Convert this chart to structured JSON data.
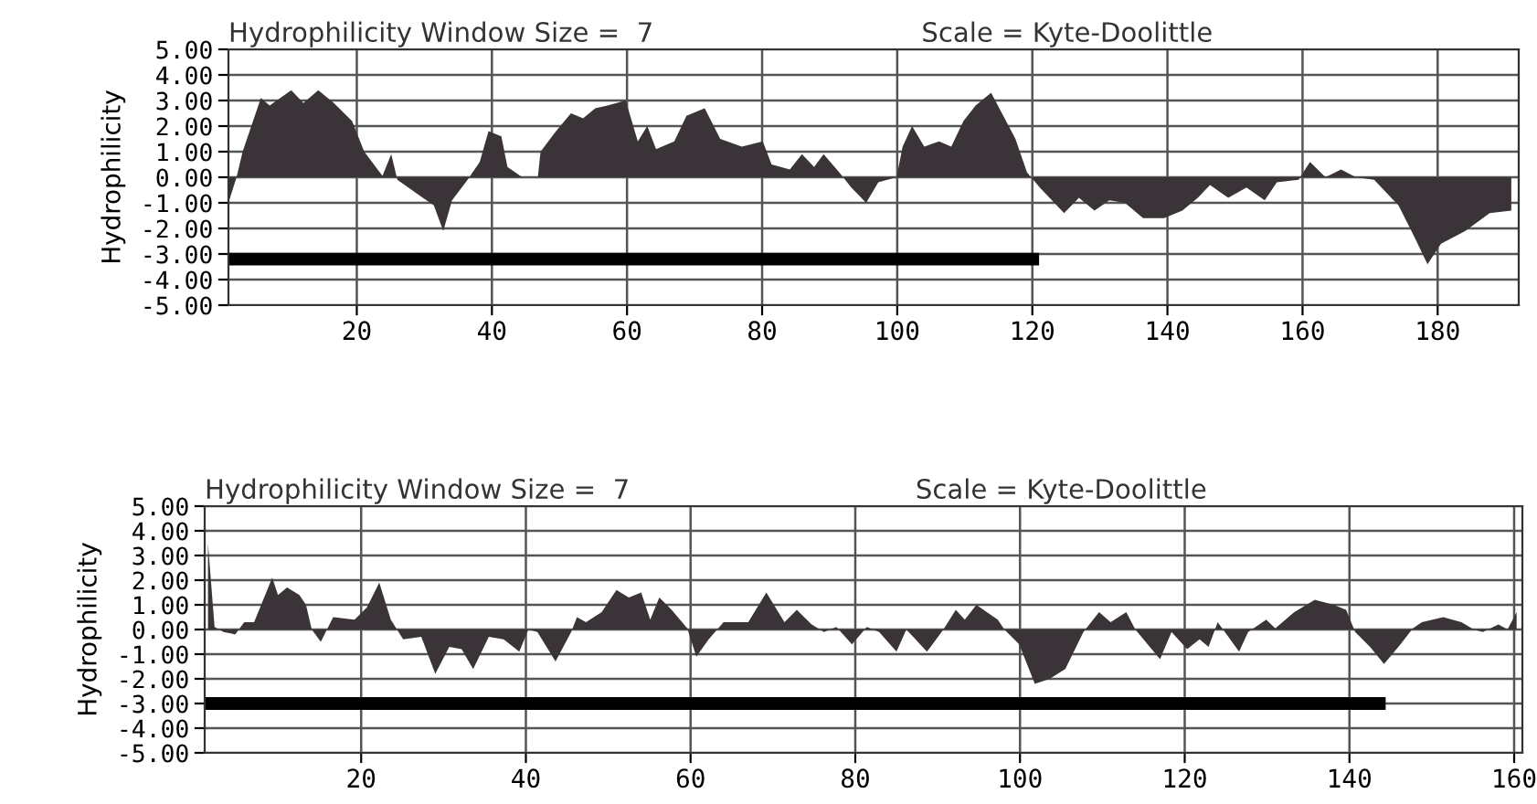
{
  "chart_data": [
    {
      "type": "area",
      "title": "Hydrophilicity Window Size =  7",
      "subtitle": "Scale = Kyte-Doolittle",
      "ylabel": "Hydrophilicity",
      "xlim": [
        1,
        192
      ],
      "ylim": [
        -5,
        5
      ],
      "xticks": [
        20,
        40,
        60,
        80,
        100,
        120,
        140,
        160,
        180
      ],
      "yticks": [
        {
          "value": 5,
          "label": "5.00"
        },
        {
          "value": 4,
          "label": "4.00"
        },
        {
          "value": 3,
          "label": "3.00"
        },
        {
          "value": 2,
          "label": "2.00"
        },
        {
          "value": 1,
          "label": "1.00"
        },
        {
          "value": 0,
          "label": "0.00"
        },
        {
          "value": -1,
          "label": "-1.00"
        },
        {
          "value": -2,
          "label": "-2.00"
        },
        {
          "value": -3,
          "label": "-3.00"
        },
        {
          "value": -4,
          "label": "-4.00"
        },
        {
          "value": -5,
          "label": "-5.00"
        }
      ],
      "grid": true,
      "legend": false,
      "series": [
        {
          "color": "#3a3338",
          "x": [
            1,
            2.2,
            3.1,
            5.8,
            7.1,
            10.3,
            12.1,
            14.3,
            16.6,
            19.3,
            21.1,
            23.8,
            25.1,
            26,
            29.2,
            31.4,
            32.8,
            34.1,
            36.4,
            38.2,
            39.5,
            41.4,
            42.3,
            44.5,
            46.8,
            47.2,
            49.5,
            51.7,
            53.5,
            55.3,
            57.1,
            59.8,
            61.6,
            63,
            64.3,
            67,
            68.8,
            71.5,
            73.8,
            77,
            80.1,
            81.4,
            84.1,
            85.9,
            87.7,
            89.1,
            91.4,
            93.2,
            95.4,
            97.2,
            99.9,
            100.8,
            102.2,
            104,
            106.2,
            108,
            109.8,
            111.6,
            113.9,
            115.7,
            117.5,
            119.2,
            121.1,
            124.7,
            126.9,
            129.2,
            131.4,
            133.7,
            136.4,
            139.5,
            142.2,
            144.5,
            146.3,
            149,
            151.7,
            154.4,
            156.2,
            159.4,
            161.1,
            163.4,
            165.7,
            167.9,
            170.6,
            174.2,
            176.5,
            178.5,
            180.5,
            184.1,
            187.7,
            190.9
          ],
          "values": [
            -1.0,
            0,
            1.0,
            3.1,
            2.8,
            3.4,
            2.9,
            3.4,
            2.9,
            2.2,
            1.0,
            0.05,
            0.9,
            -0.1,
            -0.7,
            -1.1,
            -2.1,
            -0.9,
            -0.1,
            0.6,
            1.8,
            1.6,
            0.4,
            0,
            0,
            1.0,
            1.8,
            2.5,
            2.3,
            2.7,
            2.8,
            3.0,
            1.4,
            2.0,
            1.1,
            1.4,
            2.4,
            2.7,
            1.5,
            1.2,
            1.4,
            0.5,
            0.3,
            0.9,
            0.4,
            0.9,
            0.2,
            -0.4,
            -1.0,
            -0.2,
            0,
            1.2,
            2.0,
            1.2,
            1.4,
            1.2,
            2.2,
            2.8,
            3.3,
            2.4,
            1.5,
            0.2,
            -0.4,
            -1.4,
            -0.8,
            -1.3,
            -0.9,
            -1.0,
            -1.6,
            -1.6,
            -1.3,
            -0.8,
            -0.3,
            -0.8,
            -0.4,
            -0.9,
            -0.2,
            -0.1,
            0.6,
            0,
            0.3,
            0,
            -0.1,
            -1.1,
            -2.3,
            -3.4,
            -2.6,
            -2.1,
            -1.4,
            -1.3
          ]
        },
        {
          "type": "line",
          "color": "#000000",
          "x": [
            1,
            121
          ],
          "values": [
            -3.2,
            -3.2
          ]
        }
      ]
    },
    {
      "type": "area",
      "title": "Hydrophilicity Window Size =  7",
      "subtitle": "Scale = Kyte-Doolittle",
      "ylabel": "Hydrophilicity",
      "xlim": [
        1,
        161
      ],
      "ylim": [
        -5,
        5
      ],
      "xticks": [
        20,
        40,
        60,
        80,
        100,
        120,
        140,
        160
      ],
      "yticks": [
        {
          "value": 5,
          "label": "5.00"
        },
        {
          "value": 4,
          "label": "4.00"
        },
        {
          "value": 3,
          "label": "3.00"
        },
        {
          "value": 2,
          "label": "2.00"
        },
        {
          "value": 1,
          "label": "1.00"
        },
        {
          "value": 0,
          "label": "0.00"
        },
        {
          "value": -1,
          "label": "-1.00"
        },
        {
          "value": -2,
          "label": "-2.00"
        },
        {
          "value": -3,
          "label": "-3.00"
        },
        {
          "value": -4,
          "label": "-4.00"
        },
        {
          "value": -5,
          "label": "-5.00"
        }
      ],
      "grid": true,
      "legend": false,
      "series": [
        {
          "color": "#3a3338",
          "x": [
            1.4,
            2.2,
            3.3,
            4.7,
            5.8,
            7,
            9.2,
            9.9,
            11,
            12.5,
            13.3,
            14,
            15.1,
            16.6,
            19.2,
            20.7,
            22.2,
            23.6,
            25.1,
            27.3,
            29,
            30.7,
            32.2,
            33.6,
            35.5,
            37.3,
            39.2,
            40.3,
            41.4,
            43.6,
            45.5,
            46.2,
            47.3,
            49.2,
            51,
            52.5,
            54,
            55.1,
            56.2,
            57.7,
            59.6,
            60.7,
            62.2,
            64,
            67,
            69.2,
            71.4,
            72.9,
            74.7,
            76.2,
            77.7,
            79.6,
            81.4,
            82.9,
            85,
            86.2,
            88.7,
            90.7,
            92.2,
            93.3,
            94.7,
            97.3,
            98.1,
            99.9,
            101.8,
            103.6,
            105.5,
            107.7,
            109.6,
            111,
            112.9,
            114,
            115.5,
            117,
            118.4,
            120.3,
            121.8,
            122.9,
            124,
            125.1,
            126.6,
            127.7,
            129.9,
            131,
            133.3,
            135.8,
            138.1,
            139.6,
            140.7,
            142.5,
            144.2,
            146.2,
            147.7,
            148.8,
            151.4,
            153.6,
            155.1,
            156.2,
            158.1,
            159.2,
            160.3
          ],
          "values": [
            3.5,
            0.1,
            -0.1,
            -0.2,
            0.3,
            0.3,
            2.1,
            1.4,
            1.7,
            1.4,
            1.0,
            0,
            -0.5,
            0.5,
            0.4,
            0.9,
            1.9,
            0.4,
            -0.4,
            -0.3,
            -1.8,
            -0.7,
            -0.8,
            -1.6,
            -0.3,
            -0.4,
            -0.9,
            0,
            -0.1,
            -1.3,
            -0.1,
            0.5,
            0.3,
            0.7,
            1.6,
            1.3,
            1.5,
            0.4,
            1.3,
            0.8,
            0.05,
            -1.1,
            -0.4,
            0.3,
            0.3,
            1.5,
            0.3,
            0.8,
            0.2,
            -0.1,
            0.1,
            -0.6,
            0.1,
            -0.1,
            -0.9,
            0,
            -0.9,
            0,
            0.8,
            0.4,
            1.0,
            0.4,
            0,
            -0.6,
            -2.2,
            -2.0,
            -1.6,
            -0.1,
            0.7,
            0.3,
            0.7,
            0,
            -0.6,
            -1.2,
            -0.1,
            -0.8,
            -0.4,
            -0.7,
            0.3,
            -0.2,
            -0.9,
            -0.1,
            0.4,
            0.05,
            0.7,
            1.2,
            1.0,
            0.8,
            -0.1,
            -0.7,
            -1.4,
            -0.6,
            0.05,
            0.3,
            0.5,
            0.3,
            0,
            -0.1,
            0.2,
            0,
            0.7
          ]
        },
        {
          "type": "line",
          "color": "#000000",
          "x": [
            1,
            144.4
          ],
          "values": [
            -3.0,
            -3.0
          ]
        }
      ]
    }
  ]
}
